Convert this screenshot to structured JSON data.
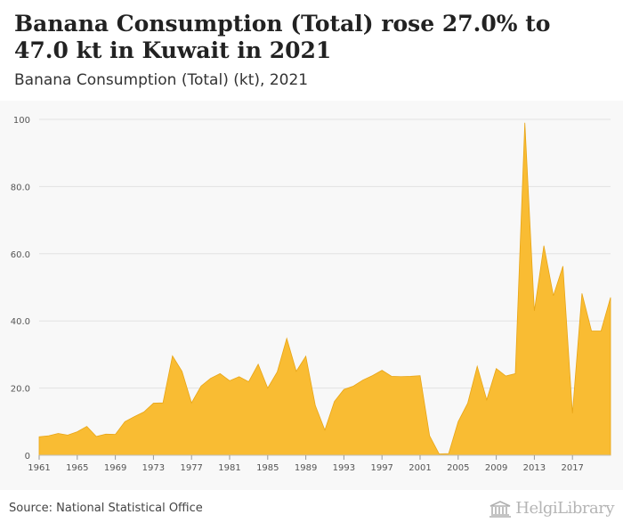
{
  "header": {
    "title": "Banana Consumption (Total) rose 27.0% to 47.0 kt in Kuwait in 2021",
    "subtitle": "Banana Consumption (Total) (kt), 2021"
  },
  "footer": {
    "source": "Source: National Statistical Office",
    "logo_text": "HelgiLibrary"
  },
  "colors": {
    "area_fill": "#f9bc33",
    "area_stroke": "#e8a516",
    "grid": "#e2e2e2",
    "axis_text": "#555555"
  },
  "chart_data": {
    "type": "area",
    "title": "Banana Consumption (Total) (kt), 2021",
    "xlabel": "",
    "ylabel": "",
    "ylim": [
      0,
      100
    ],
    "yticks": [
      0,
      20.0,
      40.0,
      60.0,
      80.0,
      100
    ],
    "ytick_labels": [
      "0",
      "20.0",
      "40.0",
      "60.0",
      "80.0",
      "100"
    ],
    "xticks": [
      1961,
      1965,
      1969,
      1973,
      1977,
      1981,
      1985,
      1989,
      1993,
      1997,
      2001,
      2005,
      2009,
      2013,
      2017
    ],
    "xtick_labels": [
      "1961",
      "1965",
      "1969",
      "1973",
      "1977",
      "1981",
      "1985",
      "1989",
      "1993",
      "1997",
      "2001",
      "2005",
      "2009",
      "2013",
      "2017"
    ],
    "grid": true,
    "series": [
      {
        "name": "Banana Consumption (Total)",
        "x": [
          1961,
          1962,
          1963,
          1964,
          1965,
          1966,
          1967,
          1968,
          1969,
          1970,
          1971,
          1972,
          1973,
          1974,
          1975,
          1976,
          1977,
          1978,
          1979,
          1980,
          1981,
          1982,
          1983,
          1984,
          1985,
          1986,
          1987,
          1988,
          1989,
          1990,
          1991,
          1992,
          1993,
          1994,
          1995,
          1996,
          1997,
          1998,
          1999,
          2000,
          2001,
          2002,
          2003,
          2004,
          2005,
          2006,
          2007,
          2008,
          2009,
          2010,
          2011,
          2012,
          2013,
          2014,
          2015,
          2016,
          2017,
          2018,
          2019,
          2020,
          2021
        ],
        "values": [
          5.5,
          5.8,
          6.5,
          6.0,
          7.0,
          8.6,
          5.6,
          6.3,
          6.2,
          10.0,
          11.5,
          12.9,
          15.5,
          15.6,
          29.6,
          25.0,
          15.6,
          20.6,
          22.9,
          24.3,
          22.2,
          23.4,
          21.9,
          27.1,
          20.0,
          24.8,
          34.8,
          25.0,
          29.5,
          14.8,
          7.5,
          16.0,
          19.6,
          20.6,
          22.4,
          23.7,
          25.3,
          23.5,
          23.4,
          23.5,
          23.7,
          5.8,
          0.4,
          0.5,
          10.0,
          15.5,
          26.5,
          16.5,
          25.8,
          23.6,
          24.3,
          99.0,
          43.0,
          62.4,
          47.5,
          56.3,
          12.5,
          48.2,
          37.0,
          37.0,
          47.0
        ]
      }
    ]
  }
}
